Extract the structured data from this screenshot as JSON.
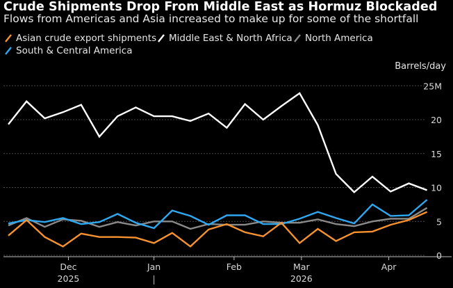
{
  "title": "Crude Shipments Drop From Middle East as Hormuz Blockaded",
  "subtitle": "Flows from Americas and Asia increased to make up for some of the shortfall",
  "legend": [
    {
      "label": "Asian crude export shipments",
      "color": "#f7922f"
    },
    {
      "label": "Middle East & North Africa",
      "color": "#ffffff"
    },
    {
      "label": "North America",
      "color": "#8a8a8a"
    },
    {
      "label": "South & Central America",
      "color": "#2fa8f2"
    }
  ],
  "unit_label": "Barrels/day",
  "chart_data": {
    "type": "line",
    "title": "Crude Shipments Drop From Middle East as Hormuz Blockaded",
    "ylabel": "Barrels/day",
    "ylim": [
      -1,
      25
    ],
    "yticks": [
      {
        "value": 25,
        "label": "25M"
      },
      {
        "value": 20,
        "label": "20"
      },
      {
        "value": 15,
        "label": "15"
      },
      {
        "value": 10,
        "label": "10"
      },
      {
        "value": 5,
        "label": "5"
      },
      {
        "value": 0,
        "label": "0"
      }
    ],
    "xticks": [
      {
        "week": 3.3,
        "label": "Dec"
      },
      {
        "week": 8.0,
        "label": "Jan"
      },
      {
        "week": 12.4,
        "label": "Feb"
      },
      {
        "week": 16.1,
        "label": "Mar"
      },
      {
        "week": 20.9,
        "label": "Apr"
      }
    ],
    "year_labels": [
      {
        "week": 3.3,
        "label": "2025"
      },
      {
        "week": 16.1,
        "label": "2026"
      }
    ],
    "year_separator_week": 8.0,
    "x": [
      0,
      1,
      2,
      3,
      4,
      5,
      6,
      7,
      8,
      9,
      10,
      11,
      12,
      13,
      14,
      15,
      16,
      17,
      18,
      19,
      20,
      21,
      22,
      23
    ],
    "series": [
      {
        "name": "Asian crude export shipments",
        "color": "#f7922f",
        "values": [
          2.9,
          5.2,
          2.7,
          1.3,
          3.2,
          2.7,
          2.7,
          2.6,
          1.8,
          3.3,
          1.3,
          3.8,
          4.6,
          3.4,
          2.8,
          4.8,
          1.8,
          3.9,
          2.1,
          3.4,
          3.5,
          4.5,
          5.2,
          6.4
        ]
      },
      {
        "name": "Middle East & North Africa",
        "color": "#ffffff",
        "values": [
          19.3,
          22.7,
          20.2,
          21.1,
          22.2,
          17.5,
          20.5,
          21.8,
          20.5,
          20.5,
          19.8,
          20.9,
          18.8,
          22.3,
          20.0,
          22.0,
          23.9,
          19.2,
          12.0,
          9.3,
          11.6,
          9.4,
          10.6,
          9.6
        ]
      },
      {
        "name": "North America",
        "color": "#8a8a8a",
        "values": [
          4.4,
          5.5,
          4.2,
          5.3,
          5.1,
          4.2,
          4.9,
          4.4,
          5.0,
          5.0,
          3.9,
          4.6,
          4.5,
          4.5,
          5.0,
          4.8,
          4.8,
          5.3,
          4.6,
          4.3,
          5.0,
          5.4,
          5.4,
          7.0
        ]
      },
      {
        "name": "South & Central America",
        "color": "#2fa8f2",
        "values": [
          4.7,
          5.2,
          4.9,
          5.5,
          4.6,
          4.9,
          6.1,
          4.8,
          4.0,
          6.6,
          5.8,
          4.5,
          5.9,
          5.9,
          4.6,
          4.6,
          5.4,
          6.4,
          5.5,
          4.7,
          7.5,
          5.8,
          5.9,
          8.2
        ]
      }
    ]
  }
}
